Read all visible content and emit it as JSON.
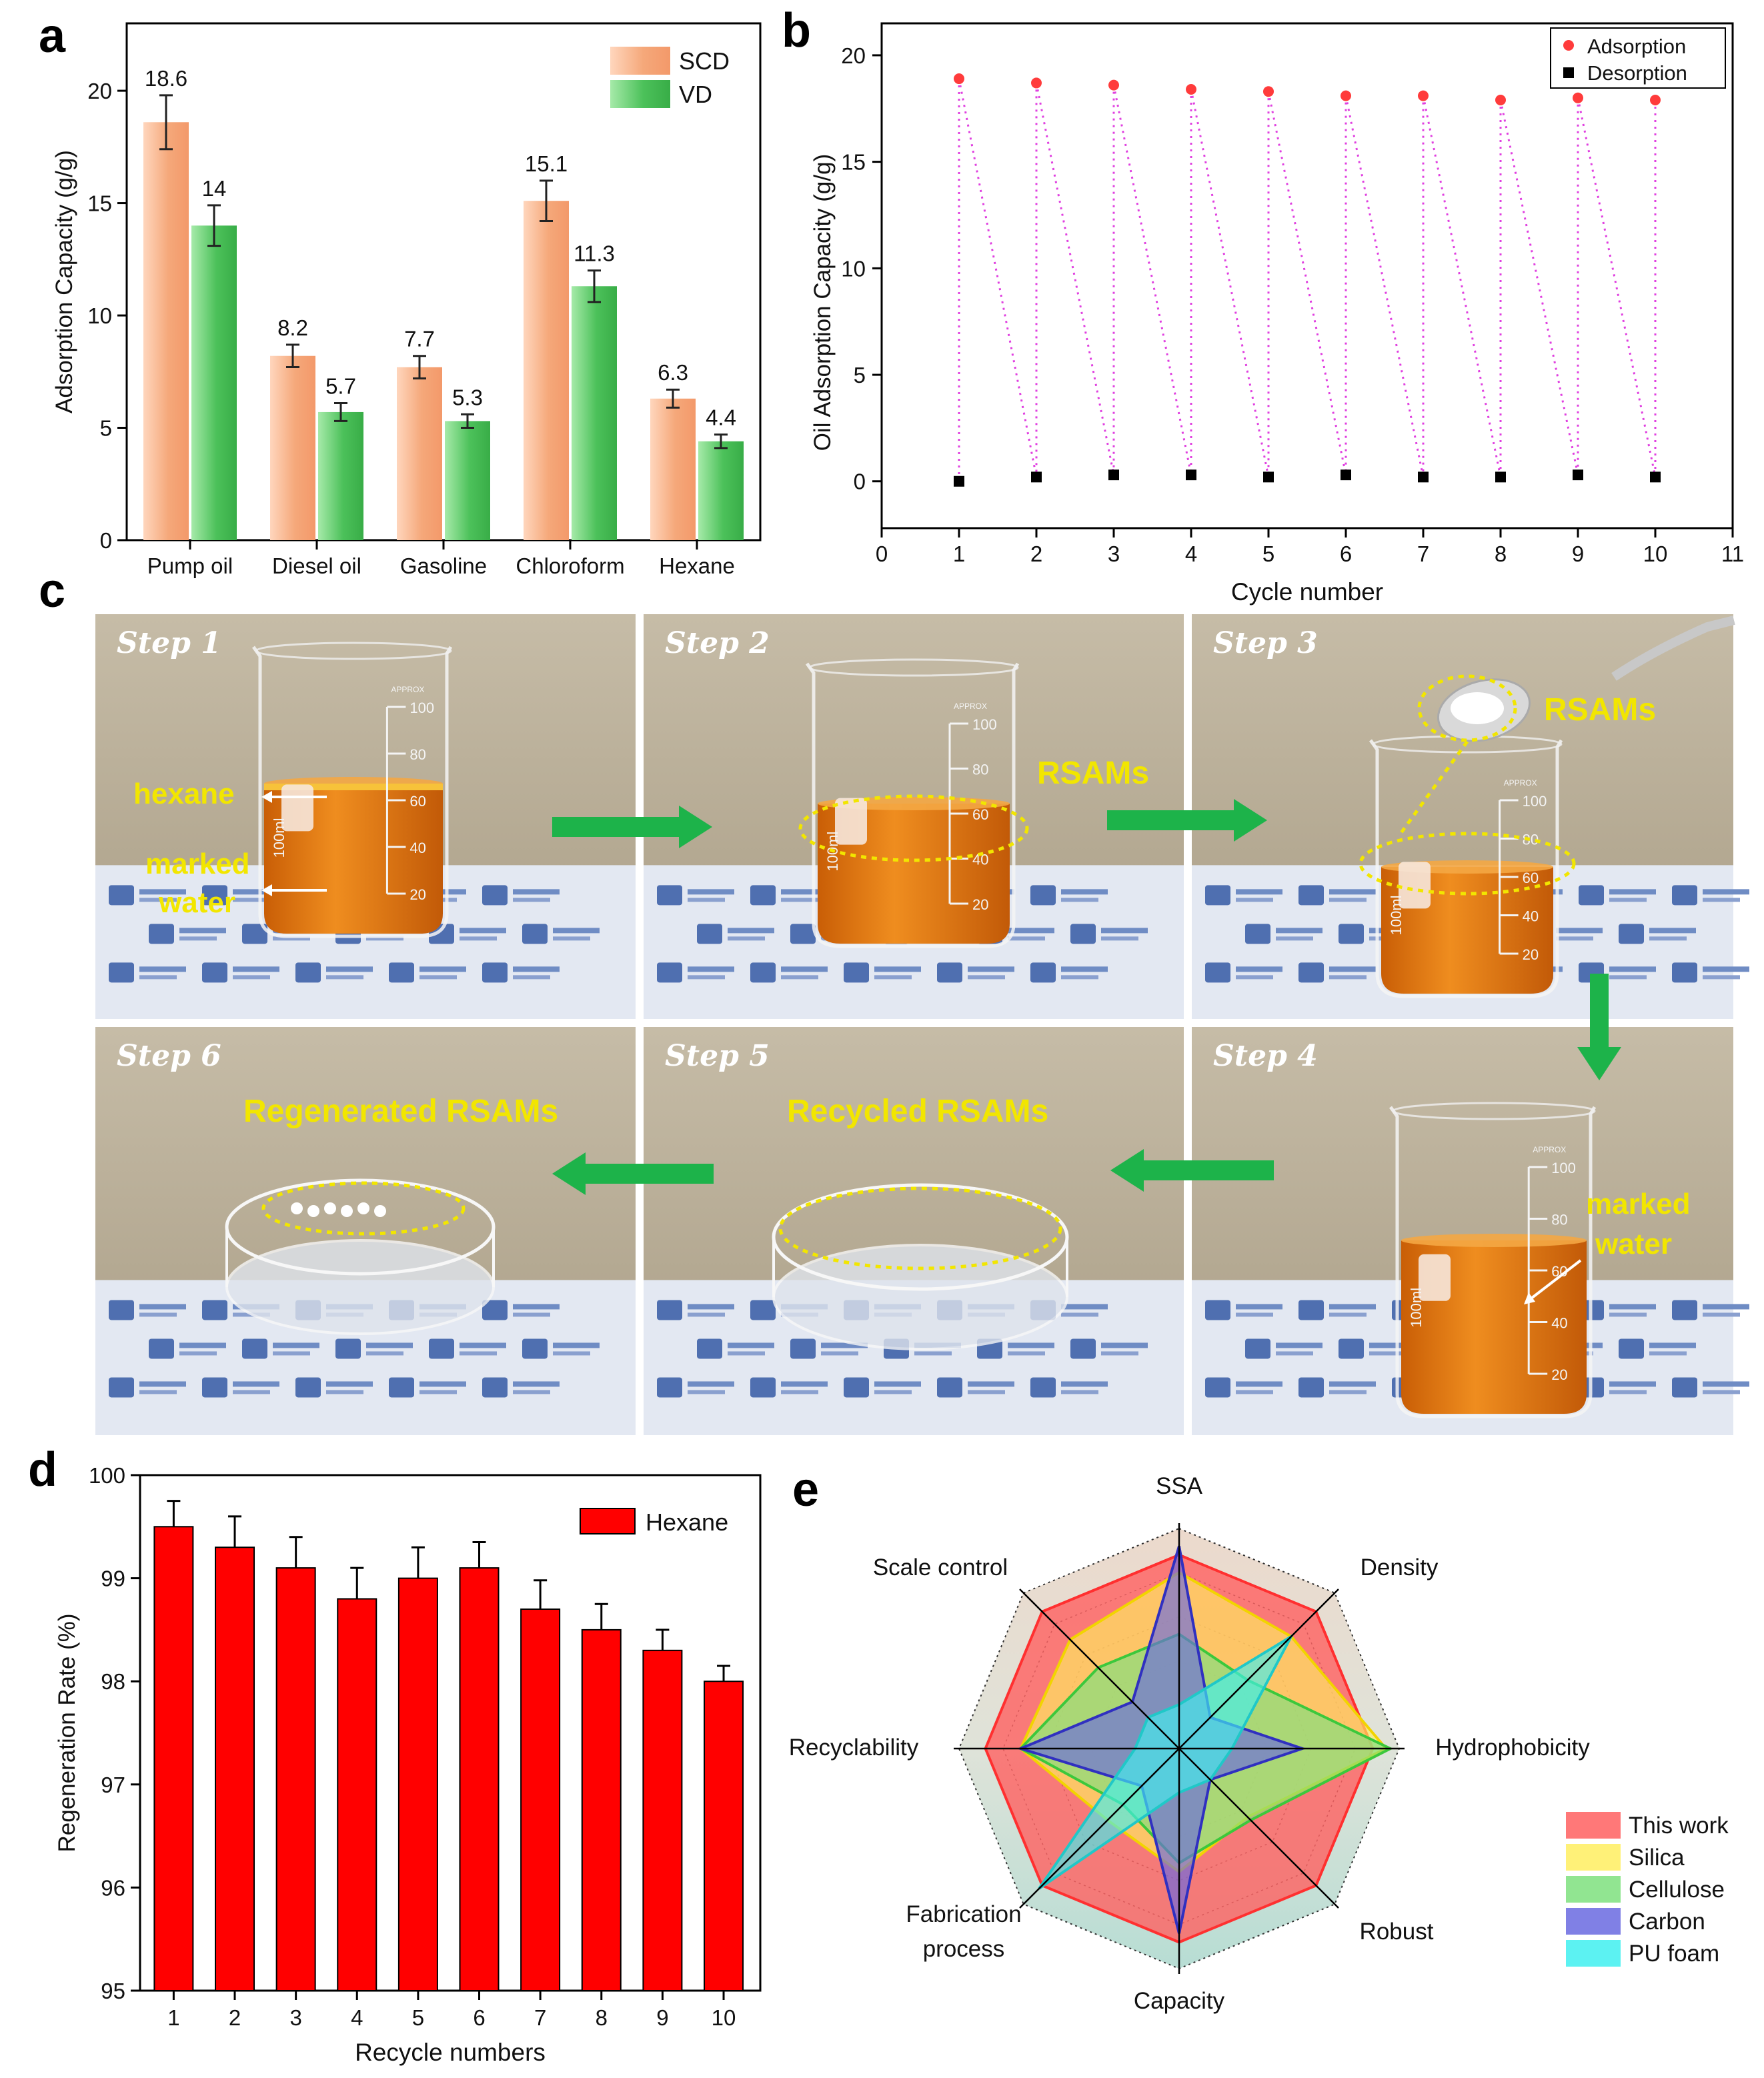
{
  "panels": {
    "a": "a",
    "b": "b",
    "c": "c",
    "d": "d",
    "e": "e"
  },
  "chart_data": [
    {
      "id": "a",
      "type": "bar",
      "ylabel": "Adsorption Capacity (g/g)",
      "xlabel": "",
      "ylim": [
        0,
        23
      ],
      "yticks": [
        "0",
        "5",
        "10",
        "15",
        "20"
      ],
      "categories": [
        "Pump oil",
        "Diesel oil",
        "Gasoline",
        "Chloroform",
        "Hexane"
      ],
      "series": [
        {
          "name": "SCD",
          "color": "#f5a87a",
          "values": [
            18.6,
            8.2,
            7.7,
            15.1,
            6.3
          ],
          "errors": [
            1.2,
            0.5,
            0.5,
            0.9,
            0.4
          ],
          "labels": [
            "18.6",
            "8.2",
            "7.7",
            "15.1",
            "6.3"
          ]
        },
        {
          "name": "VD",
          "color": "#4cc15a",
          "values": [
            14,
            5.7,
            5.3,
            11.3,
            4.4
          ],
          "errors": [
            0.9,
            0.4,
            0.3,
            0.7,
            0.3
          ],
          "labels": [
            "14",
            "5.7",
            "5.3",
            "11.3",
            "4.4"
          ]
        }
      ],
      "legend": "top-right"
    },
    {
      "id": "b",
      "type": "scatter",
      "xlabel": "Cycle number",
      "ylabel": "Oil Adsorption Capacity (g/g)",
      "xlim": [
        0,
        11
      ],
      "ylim": [
        -2.2,
        21.5
      ],
      "xticks": [
        "0",
        "1",
        "2",
        "3",
        "4",
        "5",
        "6",
        "7",
        "8",
        "9",
        "10",
        "11"
      ],
      "yticks": [
        "0",
        "5",
        "10",
        "15",
        "20"
      ],
      "x": [
        1,
        2,
        3,
        4,
        5,
        6,
        7,
        8,
        9,
        10
      ],
      "series": [
        {
          "name": "Adsorption",
          "color": "#ff3b3b",
          "marker": "circle",
          "values": [
            18.9,
            18.7,
            18.6,
            18.4,
            18.3,
            18.1,
            18.1,
            17.9,
            18.0,
            17.9
          ]
        },
        {
          "name": "Desorption",
          "color": "#000000",
          "marker": "square",
          "values": [
            0.0,
            0.2,
            0.3,
            0.3,
            0.2,
            0.3,
            0.2,
            0.2,
            0.3,
            0.2
          ]
        }
      ],
      "connector_color": "#e040e0",
      "legend": "top-right"
    },
    {
      "id": "d",
      "type": "bar",
      "xlabel": "Recycle numbers",
      "ylabel": "Regeneration Rate (%)",
      "ylim": [
        95,
        100
      ],
      "yticks": [
        "95",
        "96",
        "97",
        "98",
        "99",
        "100"
      ],
      "categories": [
        "1",
        "2",
        "3",
        "4",
        "5",
        "6",
        "7",
        "8",
        "9",
        "10"
      ],
      "series": [
        {
          "name": "Hexane",
          "color": "#ff0000",
          "values": [
            99.5,
            99.3,
            99.1,
            98.8,
            99.0,
            99.1,
            98.7,
            98.5,
            98.3,
            98.0
          ],
          "errors": [
            0.25,
            0.3,
            0.3,
            0.3,
            0.3,
            0.25,
            0.28,
            0.25,
            0.2,
            0.15
          ]
        }
      ],
      "legend": "top-right"
    },
    {
      "id": "e",
      "type": "radar",
      "axes": [
        "SSA",
        "Density",
        "Hydrophobicity",
        "Robust",
        "Capacity",
        "Fabrication process",
        "Recyclability",
        "Scale control"
      ],
      "axis_label_lines": [
        [
          "SSA"
        ],
        [
          "Density"
        ],
        [
          "Hydrophobicity"
        ],
        [
          "Robust"
        ],
        [
          "Capacity"
        ],
        [
          "Fabrication",
          "process"
        ],
        [
          "Recyclability"
        ],
        [
          "Scale control"
        ]
      ],
      "max": 5,
      "series": [
        {
          "name": "This work",
          "color": "#ff6060",
          "values": [
            4.4,
            4.4,
            4.4,
            4.4,
            4.4,
            4.4,
            4.4,
            4.4
          ]
        },
        {
          "name": "Silica",
          "color": "#ffee60",
          "values": [
            4.0,
            3.6,
            4.7,
            2.2,
            2.8,
            2.3,
            3.6,
            3.5
          ]
        },
        {
          "name": "Cellulose",
          "color": "#7ee07e",
          "values": [
            2.6,
            2.2,
            4.8,
            2.3,
            2.6,
            1.8,
            3.6,
            2.6
          ]
        },
        {
          "name": "Carbon",
          "color": "#6a6ae0",
          "values": [
            4.6,
            1.0,
            2.8,
            1.0,
            4.2,
            1.2,
            3.6,
            1.5
          ]
        },
        {
          "name": "PU foam",
          "color": "#40f0f0",
          "values": [
            1.0,
            3.6,
            1.2,
            1.0,
            1.0,
            4.5,
            1.0,
            1.0
          ]
        }
      ],
      "legend": "bottom-right"
    }
  ],
  "photos": {
    "steps": [
      "Step 1",
      "Step 2",
      "Step 3",
      "Step 4",
      "Step 5",
      "Step 6"
    ],
    "labels": {
      "hexane": "hexane",
      "marked1": "marked",
      "water1": "water",
      "rsams2": "RSAMs",
      "rsams3": "RSAMs",
      "marked4": "marked",
      "water4": "water",
      "recycled": "Recycled RSAMs",
      "regenerated": "Regenerated RSAMs"
    },
    "beaker_marks": [
      "100",
      "80",
      "60",
      "40",
      "20"
    ],
    "approx": "APPROX",
    "volume": "100ml",
    "colors": {
      "oil": "#e07a12",
      "wall": "#b5aa93",
      "arrow": "#1db34a",
      "highlight": "#f2e600"
    }
  }
}
